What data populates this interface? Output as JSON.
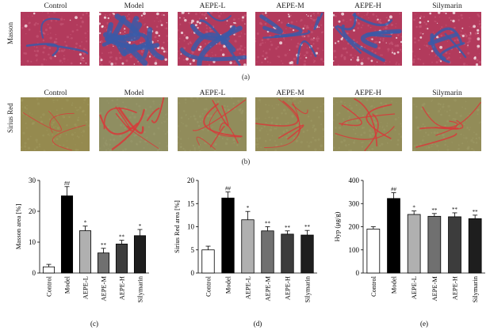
{
  "groups": [
    "Control",
    "Model",
    "AEPE-L",
    "AEPE-M",
    "AEPE-H",
    "Silymarin"
  ],
  "rows": [
    {
      "label": "Masson",
      "caption": "(a)"
    },
    {
      "label": "Sirius Red",
      "caption": "(b)"
    }
  ],
  "colors": {
    "masson_bg": "#b23a5c",
    "masson_fibers": "#3a5aa8",
    "sirius_bg": "#9a8640",
    "sirius_fibers": "#d8383a",
    "bars": [
      "#ffffff",
      "#000000",
      "#b0b0b0",
      "#707070",
      "#3c3c3c",
      "#1e1e1e"
    ]
  },
  "chart_data": [
    {
      "type": "bar",
      "caption": "(c)",
      "categories": [
        "Control",
        "Model",
        "AEPE-L",
        "AEPE-M",
        "AEPE-H",
        "Silymarin"
      ],
      "values": [
        2,
        25,
        13.7,
        6.5,
        9.4,
        12.1
      ],
      "errors": [
        0.8,
        3.0,
        1.5,
        1.5,
        1.2,
        2.0
      ],
      "significance": [
        "",
        "##",
        "*",
        "**",
        "**",
        "*"
      ],
      "ylabel": "Masson area [%]",
      "ylim": [
        0,
        30
      ],
      "yticks": [
        0,
        10,
        20,
        30
      ]
    },
    {
      "type": "bar",
      "caption": "(d)",
      "categories": [
        "Control",
        "Model",
        "AEPE-L",
        "AEPE-M",
        "AEPE-H",
        "Silymarin"
      ],
      "values": [
        5,
        16.2,
        11.5,
        9.1,
        8.4,
        8.2
      ],
      "errors": [
        0.8,
        1.3,
        1.8,
        0.9,
        0.7,
        1.0
      ],
      "significance": [
        "",
        "##",
        "*",
        "**",
        "**",
        "**"
      ],
      "ylabel": "Sirius Red area [%]",
      "ylim": [
        0,
        20
      ],
      "yticks": [
        0,
        5,
        10,
        15,
        20
      ]
    },
    {
      "type": "bar",
      "caption": "(e)",
      "categories": [
        "Control",
        "Model",
        "AEPE-L",
        "AEPE-M",
        "AEPE-H",
        "Silymarin"
      ],
      "values": [
        190,
        322,
        253,
        245,
        243,
        235
      ],
      "errors": [
        10,
        25,
        15,
        12,
        17,
        15
      ],
      "significance": [
        "",
        "##",
        "*",
        "**",
        "**",
        "**"
      ],
      "ylabel": "Hyp (μg/g)",
      "ylim": [
        0,
        400
      ],
      "yticks": [
        0,
        100,
        200,
        300,
        400
      ]
    }
  ]
}
